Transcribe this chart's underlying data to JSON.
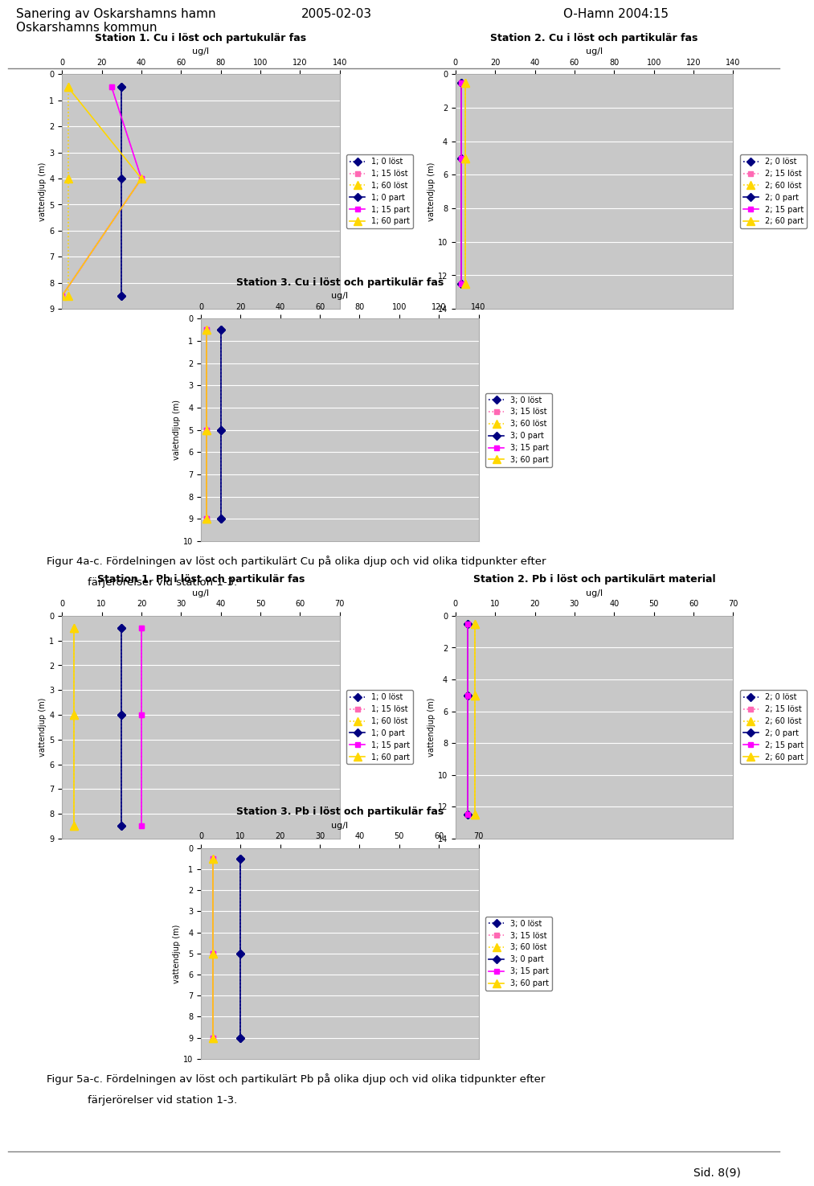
{
  "header_left": "Sanering av Oskarshamns hamn\nOskarshamns kommun",
  "header_center": "2005-02-03",
  "header_right": "O-Hamn 2004:15",
  "footer_4a": "Figur 4a-c. Fördelningen av löst och partikulärt Cu på olika djup och vid olika tidpunkter efter\n           färjерörelser vid station 1-3.",
  "footer_5a": "Figur 5a-c. Fördelningen av löst och partikulärt Pb på olika djup och vid olika tidpunkter efter\n           färjerörelser vid station 1-3.",
  "page": "Sid. 8(9)",
  "cu_s1": {
    "title": "Station 1. Cu i löst och partukulär fas",
    "xlabel": "ug/l",
    "ylabel": "vattendjup (m)",
    "xlim": [
      0,
      140
    ],
    "xticks": [
      0,
      20,
      40,
      60,
      80,
      100,
      120,
      140
    ],
    "ylim": [
      9,
      0
    ],
    "yticks": [
      0,
      1,
      2,
      3,
      4,
      5,
      6,
      7,
      8,
      9
    ],
    "series": [
      {
        "label": "1; 0 löst",
        "x": [
          30,
          30
        ],
        "y": [
          0.5,
          8.5
        ],
        "color": "#000080",
        "ls": "dotted",
        "marker": "D",
        "ms": 5
      },
      {
        "label": "1; 15 löst",
        "x": [
          25,
          40,
          0
        ],
        "y": [
          0.5,
          4,
          8.5
        ],
        "color": "#ff69b4",
        "ls": "dotted",
        "marker": "s",
        "ms": 5
      },
      {
        "label": "1; 60 löst",
        "x": [
          3,
          3,
          3
        ],
        "y": [
          0.5,
          4,
          8.5
        ],
        "color": "#ffd700",
        "ls": "dotted",
        "marker": "^",
        "ms": 7
      },
      {
        "label": "1; 0 part",
        "x": [
          30,
          30,
          30
        ],
        "y": [
          0.5,
          4,
          8.5
        ],
        "color": "#000080",
        "ls": "solid",
        "marker": "D",
        "ms": 5
      },
      {
        "label": "1; 15 part",
        "x": [
          25,
          40,
          0
        ],
        "y": [
          0.5,
          4,
          8.5
        ],
        "color": "#ff00ff",
        "ls": "solid",
        "marker": "s",
        "ms": 5
      },
      {
        "label": "1; 60 part",
        "x": [
          3,
          40,
          0
        ],
        "y": [
          0.5,
          4,
          8.5
        ],
        "color": "#ffd700",
        "ls": "solid",
        "marker": "^",
        "ms": 7
      }
    ],
    "xaxis_labels": [
      "60",
      "15",
      "0"
    ]
  },
  "cu_s2": {
    "title": "Station 2. Cu i löst och partikulär fas",
    "xlabel": "ug/l",
    "ylabel": "vattendjup (m)",
    "xlim": [
      0,
      140
    ],
    "xticks": [
      0,
      20,
      40,
      60,
      80,
      100,
      120,
      140
    ],
    "ylim": [
      14,
      0
    ],
    "yticks": [
      0,
      2,
      4,
      6,
      8,
      10,
      12,
      14
    ],
    "series": [
      {
        "label": "2; 0 löst",
        "x": [
          3,
          3,
          3
        ],
        "y": [
          0.5,
          5,
          12.5
        ],
        "color": "#000080",
        "ls": "dotted",
        "marker": "D",
        "ms": 5
      },
      {
        "label": "2; 15 löst",
        "x": [
          3,
          3,
          3
        ],
        "y": [
          0.5,
          5,
          12.5
        ],
        "color": "#ff69b4",
        "ls": "dotted",
        "marker": "s",
        "ms": 5
      },
      {
        "label": "2; 60 löst",
        "x": [
          5,
          5,
          5
        ],
        "y": [
          0.5,
          5,
          12.5
        ],
        "color": "#ffd700",
        "ls": "dotted",
        "marker": "^",
        "ms": 7
      },
      {
        "label": "2; 0 part",
        "x": [
          3,
          3,
          3
        ],
        "y": [
          0.5,
          5,
          12.5
        ],
        "color": "#000080",
        "ls": "solid",
        "marker": "D",
        "ms": 5
      },
      {
        "label": "2; 15 part",
        "x": [
          3,
          3,
          3
        ],
        "y": [
          0.5,
          5,
          12.5
        ],
        "color": "#ff00ff",
        "ls": "solid",
        "marker": "s",
        "ms": 5
      },
      {
        "label": "2; 60 part",
        "x": [
          5,
          5,
          5
        ],
        "y": [
          0.5,
          5,
          12.5
        ],
        "color": "#ffd700",
        "ls": "solid",
        "marker": "^",
        "ms": 7
      }
    ],
    "xaxis_labels": [
      "0 15 60"
    ]
  },
  "cu_s3": {
    "title": "Station 3. Cu i löst och partikulär fas",
    "xlabel": "ug/l",
    "ylabel": "valetndljup (m)",
    "xlim": [
      0,
      140
    ],
    "xticks": [
      0,
      20,
      40,
      60,
      80,
      100,
      120,
      140
    ],
    "ylim": [
      10,
      0
    ],
    "yticks": [
      0,
      1,
      2,
      3,
      4,
      5,
      6,
      7,
      8,
      9,
      10
    ],
    "series": [
      {
        "label": "3; 0 löst",
        "x": [
          10,
          10,
          10
        ],
        "y": [
          0.5,
          5,
          9
        ],
        "color": "#000080",
        "ls": "dotted",
        "marker": "D",
        "ms": 5
      },
      {
        "label": "3; 15 löst",
        "x": [
          3,
          3,
          3
        ],
        "y": [
          0.5,
          5,
          9
        ],
        "color": "#ff69b4",
        "ls": "dotted",
        "marker": "s",
        "ms": 5
      },
      {
        "label": "3; 60 löst",
        "x": [
          3,
          3,
          3
        ],
        "y": [
          0.5,
          5,
          9
        ],
        "color": "#ffd700",
        "ls": "dotted",
        "marker": "^",
        "ms": 7
      },
      {
        "label": "3; 0 part",
        "x": [
          10,
          10,
          10
        ],
        "y": [
          0.5,
          5,
          9
        ],
        "color": "#000080",
        "ls": "solid",
        "marker": "D",
        "ms": 5
      },
      {
        "label": "3; 15 part",
        "x": [
          3,
          3,
          3
        ],
        "y": [
          0.5,
          5,
          9
        ],
        "color": "#ff00ff",
        "ls": "solid",
        "marker": "s",
        "ms": 5
      },
      {
        "label": "3; 60 part",
        "x": [
          3,
          3,
          3
        ],
        "y": [
          0.5,
          5,
          9
        ],
        "color": "#ffd700",
        "ls": "solid",
        "marker": "^",
        "ms": 7
      }
    ],
    "xaxis_labels": [
      "60",
      "15",
      "0"
    ]
  },
  "pb_s1": {
    "title": "Station 1. Pb i löst och partikulär fas",
    "xlabel": "ug/l",
    "ylabel": "vattendjup (m)",
    "xlim": [
      0,
      70
    ],
    "xticks": [
      0,
      10,
      20,
      30,
      40,
      50,
      60,
      70
    ],
    "ylim": [
      9,
      0
    ],
    "yticks": [
      0,
      1,
      2,
      3,
      4,
      5,
      6,
      7,
      8,
      9
    ],
    "series": [
      {
        "label": "1; 0 löst",
        "x": [
          15,
          15,
          15
        ],
        "y": [
          0.5,
          4,
          8.5
        ],
        "color": "#000080",
        "ls": "dotted",
        "marker": "D",
        "ms": 5
      },
      {
        "label": "1; 15 löst",
        "x": [
          20,
          20,
          20
        ],
        "y": [
          0.5,
          4,
          8.5
        ],
        "color": "#ff69b4",
        "ls": "dotted",
        "marker": "s",
        "ms": 5
      },
      {
        "label": "1; 60 löst",
        "x": [
          3,
          3,
          3
        ],
        "y": [
          0.5,
          4,
          8.5
        ],
        "color": "#ffd700",
        "ls": "dotted",
        "marker": "^",
        "ms": 7
      },
      {
        "label": "1; 0 part",
        "x": [
          15,
          15,
          15
        ],
        "y": [
          0.5,
          4,
          8.5
        ],
        "color": "#000080",
        "ls": "solid",
        "marker": "D",
        "ms": 5
      },
      {
        "label": "1; 15 part",
        "x": [
          20,
          20,
          20
        ],
        "y": [
          0.5,
          4,
          8.5
        ],
        "color": "#ff00ff",
        "ls": "solid",
        "marker": "s",
        "ms": 5
      },
      {
        "label": "1; 60 part",
        "x": [
          3,
          3,
          3
        ],
        "y": [
          0.5,
          4,
          8.5
        ],
        "color": "#ffd700",
        "ls": "solid",
        "marker": "^",
        "ms": 7
      }
    ],
    "xaxis_labels": [
      "60",
      "15",
      "0"
    ]
  },
  "pb_s2": {
    "title": "Station 2. Pb i löst och partikulärt material",
    "xlabel": "ug/l",
    "ylabel": "vattendjup (m)",
    "xlim": [
      0,
      70
    ],
    "xticks": [
      0,
      10,
      20,
      30,
      40,
      50,
      60,
      70
    ],
    "ylim": [
      14,
      0
    ],
    "yticks": [
      0,
      2,
      4,
      6,
      8,
      10,
      12,
      14
    ],
    "series": [
      {
        "label": "2; 0 löst",
        "x": [
          3,
          3,
          3
        ],
        "y": [
          0.5,
          5,
          12.5
        ],
        "color": "#000080",
        "ls": "dotted",
        "marker": "D",
        "ms": 5
      },
      {
        "label": "2; 15 löst",
        "x": [
          3,
          3,
          3
        ],
        "y": [
          0.5,
          5,
          12.5
        ],
        "color": "#ff69b4",
        "ls": "dotted",
        "marker": "s",
        "ms": 5
      },
      {
        "label": "2; 60 löst",
        "x": [
          5,
          5,
          5
        ],
        "y": [
          0.5,
          5,
          12.5
        ],
        "color": "#ffd700",
        "ls": "dotted",
        "marker": "^",
        "ms": 7
      },
      {
        "label": "2; 0 part",
        "x": [
          3,
          3,
          3
        ],
        "y": [
          0.5,
          5,
          12.5
        ],
        "color": "#000080",
        "ls": "solid",
        "marker": "D",
        "ms": 5
      },
      {
        "label": "2; 15 part",
        "x": [
          3,
          3,
          3
        ],
        "y": [
          0.5,
          5,
          12.5
        ],
        "color": "#ff00ff",
        "ls": "solid",
        "marker": "s",
        "ms": 5
      },
      {
        "label": "2; 60 part",
        "x": [
          5,
          5,
          5
        ],
        "y": [
          0.5,
          5,
          12.5
        ],
        "color": "#ffd700",
        "ls": "solid",
        "marker": "^",
        "ms": 7
      }
    ],
    "xaxis_labels": [
      "0 15 60"
    ]
  },
  "pb_s3": {
    "title": "Station 3. Pb i löst och partikulär fas",
    "xlabel": "ug/l",
    "ylabel": "vattendjup (m)",
    "xlim": [
      0,
      70
    ],
    "xticks": [
      0,
      10,
      20,
      30,
      40,
      50,
      60,
      70
    ],
    "ylim": [
      10,
      0
    ],
    "yticks": [
      0,
      1,
      2,
      3,
      4,
      5,
      6,
      7,
      8,
      9,
      10
    ],
    "series": [
      {
        "label": "3; 0 löst",
        "x": [
          10,
          10,
          10
        ],
        "y": [
          0.5,
          5,
          9
        ],
        "color": "#000080",
        "ls": "dotted",
        "marker": "D",
        "ms": 5
      },
      {
        "label": "3; 15 löst",
        "x": [
          3,
          3,
          3
        ],
        "y": [
          0.5,
          5,
          9
        ],
        "color": "#ff69b4",
        "ls": "dotted",
        "marker": "s",
        "ms": 5
      },
      {
        "label": "3; 60 löst",
        "x": [
          3,
          3,
          3
        ],
        "y": [
          0.5,
          5,
          9
        ],
        "color": "#ffd700",
        "ls": "dotted",
        "marker": "^",
        "ms": 7
      },
      {
        "label": "3; 0 part",
        "x": [
          10,
          10,
          10
        ],
        "y": [
          0.5,
          5,
          9
        ],
        "color": "#000080",
        "ls": "solid",
        "marker": "D",
        "ms": 5
      },
      {
        "label": "3; 15 part",
        "x": [
          3,
          3,
          3
        ],
        "y": [
          0.5,
          5,
          9
        ],
        "color": "#ff00ff",
        "ls": "solid",
        "marker": "s",
        "ms": 5
      },
      {
        "label": "3; 60 part",
        "x": [
          3,
          3,
          3
        ],
        "y": [
          0.5,
          5,
          9
        ],
        "color": "#ffd700",
        "ls": "solid",
        "marker": "^",
        "ms": 7
      }
    ],
    "xaxis_labels": [
      "60",
      "15",
      "0"
    ]
  },
  "bg_color": "#c8c8c8",
  "plot_bg": "#c0c0c0",
  "border_color": "#808080"
}
